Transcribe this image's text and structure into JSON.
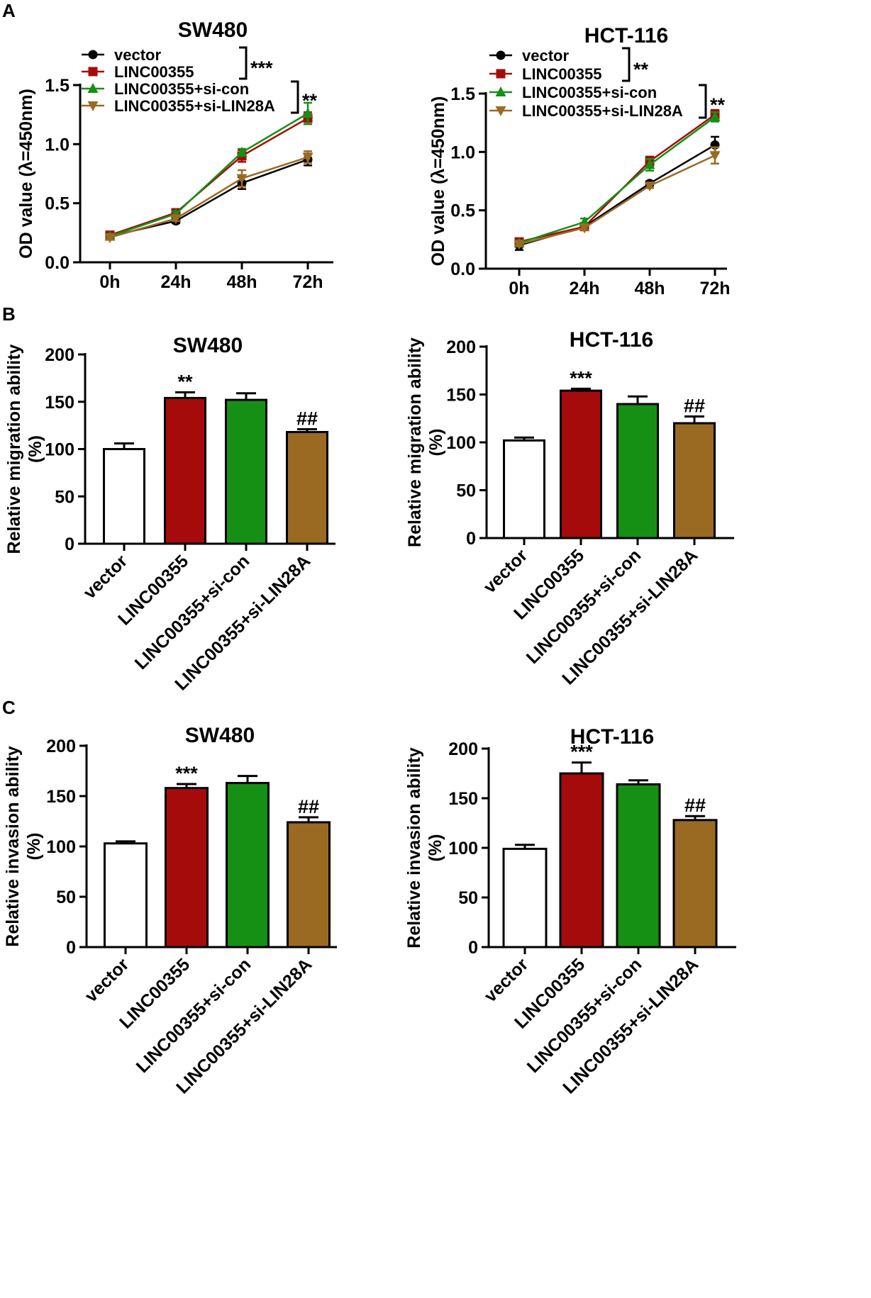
{
  "panels": [
    {
      "letter": "A"
    },
    {
      "letter": "B"
    },
    {
      "letter": "C"
    }
  ],
  "colors": {
    "vector": "#000000",
    "LINC00355": "#a50b0b",
    "si_con": "#159015",
    "si_LIN28A": "#9a6a23"
  },
  "chart_data": [
    {
      "id": "A-left",
      "type": "line",
      "title": "SW480",
      "xlabel": "",
      "ylabel": "OD value (λ=450nm)",
      "categories": [
        "0h",
        "24h",
        "48h",
        "72h"
      ],
      "ylim": [
        0,
        1.5
      ],
      "yticks": [
        "0.0",
        "0.5",
        "1.0",
        "1.5"
      ],
      "series": [
        {
          "name": "vector",
          "marker": "circle",
          "color": "#000000",
          "values": [
            0.22,
            0.35,
            0.67,
            0.87
          ],
          "errors": [
            0.02,
            0.02,
            0.05,
            0.05
          ]
        },
        {
          "name": "LINC00355",
          "marker": "square",
          "color": "#a50b0b",
          "values": [
            0.23,
            0.42,
            0.9,
            1.22
          ],
          "errors": [
            0.02,
            0.02,
            0.05,
            0.05
          ]
        },
        {
          "name": "LINC00355+si-con",
          "marker": "up-triangle",
          "color": "#159015",
          "values": [
            0.22,
            0.41,
            0.93,
            1.26
          ],
          "errors": [
            0.02,
            0.02,
            0.03,
            0.09
          ]
        },
        {
          "name": "LINC00355+si-LIN28A",
          "marker": "down-triangle",
          "color": "#9a6a23",
          "values": [
            0.21,
            0.37,
            0.71,
            0.89
          ],
          "errors": [
            0.02,
            0.02,
            0.07,
            0.05
          ]
        }
      ],
      "annotations": {
        "legend_bracket_1": "***",
        "legend_bracket_2": "**"
      }
    },
    {
      "id": "A-right",
      "type": "line",
      "title": "HCT-116",
      "xlabel": "",
      "ylabel": "OD value (λ=450nm)",
      "categories": [
        "0h",
        "24h",
        "48h",
        "72h"
      ],
      "ylim": [
        0,
        1.5
      ],
      "yticks": [
        "0.0",
        "0.5",
        "1.0",
        "1.5"
      ],
      "series": [
        {
          "name": "vector",
          "marker": "circle",
          "color": "#000000",
          "values": [
            0.2,
            0.36,
            0.73,
            1.06
          ],
          "errors": [
            0.04,
            0.02,
            0.02,
            0.07
          ]
        },
        {
          "name": "LINC00355",
          "marker": "square",
          "color": "#a50b0b",
          "values": [
            0.23,
            0.36,
            0.92,
            1.32
          ],
          "errors": [
            0.02,
            0.02,
            0.04,
            0.04
          ]
        },
        {
          "name": "LINC00355+si-con",
          "marker": "up-triangle",
          "color": "#159015",
          "values": [
            0.22,
            0.4,
            0.89,
            1.3
          ],
          "errors": [
            0.02,
            0.03,
            0.05,
            0.04
          ]
        },
        {
          "name": "LINC00355+si-LIN28A",
          "marker": "down-triangle",
          "color": "#9a6a23",
          "values": [
            0.21,
            0.35,
            0.71,
            0.97
          ],
          "errors": [
            0.02,
            0.02,
            0.02,
            0.07
          ]
        }
      ],
      "annotations": {
        "legend_bracket_1": "**",
        "legend_bracket_2": "**"
      }
    },
    {
      "id": "B-left",
      "type": "bar",
      "title": "SW480",
      "xlabel": "",
      "ylabel": "Relative migration ability (%)",
      "ylabel_line1": "Relative migration ability",
      "ylabel_line2": "(%)",
      "categories": [
        "vector",
        "LINC00355",
        "LINC00355+si-con",
        "LINC00355+si-LIN28A"
      ],
      "ylim": [
        0,
        200
      ],
      "yticks": [
        "0",
        "50",
        "100",
        "150",
        "200"
      ],
      "values": [
        100,
        154,
        152,
        118
      ],
      "errors": [
        6,
        6,
        7,
        3
      ],
      "bar_colors": [
        "#ffffff",
        "#a50b0b",
        "#159015",
        "#9a6a23"
      ],
      "labels": [
        "",
        "**",
        "",
        "##"
      ]
    },
    {
      "id": "B-right",
      "type": "bar",
      "title": "HCT-116",
      "xlabel": "",
      "ylabel": "Relative migration ability (%)",
      "ylabel_line1": "Relative migration ability",
      "ylabel_line2": "(%)",
      "categories": [
        "vector",
        "LINC00355",
        "LINC00355+si-con",
        "LINC00355+si-LIN28A"
      ],
      "ylim": [
        0,
        200
      ],
      "yticks": [
        "0",
        "50",
        "100",
        "150",
        "200"
      ],
      "values": [
        102,
        154,
        140,
        120
      ],
      "errors": [
        3,
        2,
        8,
        7
      ],
      "bar_colors": [
        "#ffffff",
        "#a50b0b",
        "#159015",
        "#9a6a23"
      ],
      "labels": [
        "",
        "***",
        "",
        "##"
      ]
    },
    {
      "id": "C-left",
      "type": "bar",
      "title": "SW480",
      "xlabel": "",
      "ylabel": "Relative invasion ability (%)",
      "ylabel_line1": "Relative invasion ability",
      "ylabel_line2": "(%)",
      "categories": [
        "vector",
        "LINC00355",
        "LINC00355+si-con",
        "LINC00355+si-LIN28A"
      ],
      "ylim": [
        0,
        200
      ],
      "yticks": [
        "0",
        "50",
        "100",
        "150",
        "200"
      ],
      "values": [
        103,
        158,
        163,
        124
      ],
      "errors": [
        2,
        4,
        7,
        5
      ],
      "bar_colors": [
        "#ffffff",
        "#a50b0b",
        "#159015",
        "#9a6a23"
      ],
      "labels": [
        "",
        "***",
        "",
        "##"
      ]
    },
    {
      "id": "C-right",
      "type": "bar",
      "title": "HCT-116",
      "xlabel": "",
      "ylabel": "Relative invasion ability (%)",
      "ylabel_line1": "Relative invasion ability",
      "ylabel_line2": "(%)",
      "categories": [
        "vector",
        "LINC00355",
        "LINC00355+si-con",
        "LINC00355+si-LIN28A"
      ],
      "ylim": [
        0,
        200
      ],
      "yticks": [
        "0",
        "50",
        "100",
        "150",
        "200"
      ],
      "values": [
        99,
        175,
        164,
        128
      ],
      "errors": [
        4,
        11,
        4,
        4
      ],
      "bar_colors": [
        "#ffffff",
        "#a50b0b",
        "#159015",
        "#9a6a23"
      ],
      "labels": [
        "",
        "***",
        "",
        "##"
      ]
    }
  ]
}
